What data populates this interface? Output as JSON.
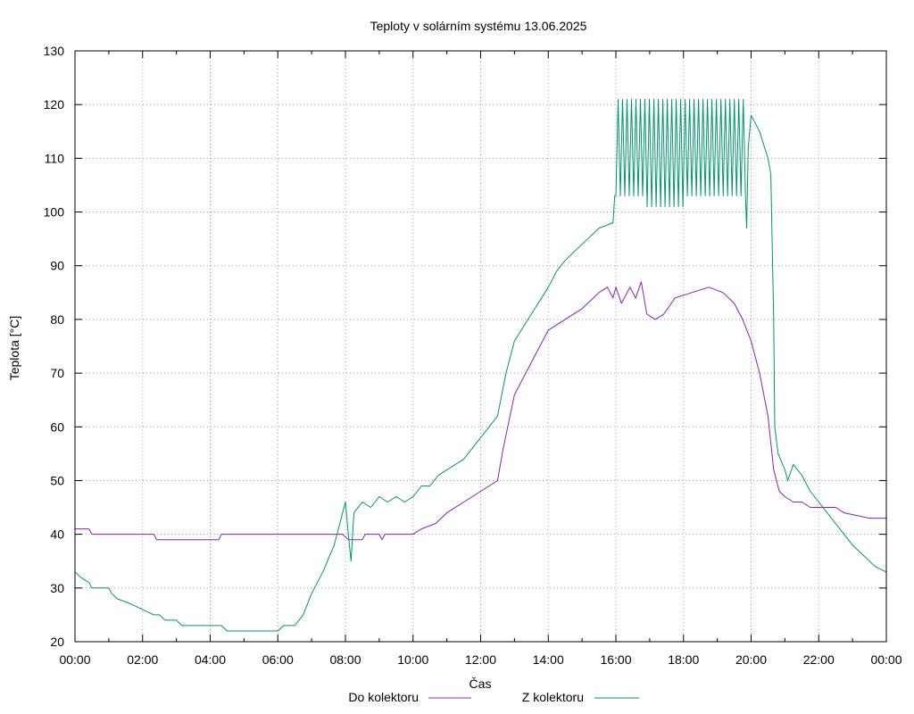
{
  "chart_data": {
    "type": "line",
    "title": "Teploty v solárním systému 13.06.2025",
    "xlabel": "Čas",
    "ylabel": "Teplota [°C]",
    "xlim_hours": [
      0,
      24
    ],
    "ylim": [
      20,
      130
    ],
    "x_ticks": [
      "00:00",
      "02:00",
      "04:00",
      "06:00",
      "08:00",
      "10:00",
      "12:00",
      "14:00",
      "16:00",
      "18:00",
      "20:00",
      "22:00",
      "00:00"
    ],
    "y_ticks": [
      20,
      30,
      40,
      50,
      60,
      70,
      80,
      90,
      100,
      110,
      120,
      130
    ],
    "grid": true,
    "legend_position": "bottom-center",
    "series": [
      {
        "name": "Do kolektoru",
        "color": "#8b1fb4",
        "points": [
          [
            "00:00",
            41
          ],
          [
            "00:25",
            41
          ],
          [
            "00:30",
            40
          ],
          [
            "02:20",
            40
          ],
          [
            "02:25",
            39
          ],
          [
            "04:15",
            39
          ],
          [
            "04:20",
            40
          ],
          [
            "07:40",
            40
          ],
          [
            "07:55",
            40
          ],
          [
            "08:05",
            39
          ],
          [
            "08:30",
            39
          ],
          [
            "08:35",
            40
          ],
          [
            "09:00",
            40
          ],
          [
            "09:05",
            39
          ],
          [
            "09:10",
            40
          ],
          [
            "10:00",
            40
          ],
          [
            "10:15",
            41
          ],
          [
            "10:40",
            42
          ],
          [
            "11:00",
            44
          ],
          [
            "11:30",
            46
          ],
          [
            "12:00",
            48
          ],
          [
            "12:30",
            50
          ],
          [
            "12:40",
            56
          ],
          [
            "13:00",
            66
          ],
          [
            "13:30",
            72
          ],
          [
            "14:00",
            78
          ],
          [
            "14:30",
            80
          ],
          [
            "15:00",
            82
          ],
          [
            "15:30",
            85
          ],
          [
            "15:45",
            86
          ],
          [
            "15:55",
            84
          ],
          [
            "16:00",
            86
          ],
          [
            "16:10",
            83
          ],
          [
            "16:25",
            86
          ],
          [
            "16:35",
            84
          ],
          [
            "16:45",
            87
          ],
          [
            "16:55",
            81
          ],
          [
            "17:10",
            80
          ],
          [
            "17:25",
            81
          ],
          [
            "17:45",
            84
          ],
          [
            "18:15",
            85
          ],
          [
            "18:45",
            86
          ],
          [
            "19:10",
            85
          ],
          [
            "19:30",
            83
          ],
          [
            "19:45",
            80
          ],
          [
            "20:00",
            76
          ],
          [
            "20:15",
            70
          ],
          [
            "20:30",
            62
          ],
          [
            "20:40",
            52
          ],
          [
            "20:50",
            48
          ],
          [
            "21:00",
            47
          ],
          [
            "21:15",
            46
          ],
          [
            "21:30",
            46
          ],
          [
            "21:45",
            45
          ],
          [
            "22:30",
            45
          ],
          [
            "22:45",
            44
          ],
          [
            "23:30",
            43
          ],
          [
            "24:00",
            43
          ]
        ]
      },
      {
        "name": "Z kolektoru",
        "color": "#00956b",
        "points": [
          [
            "00:00",
            33
          ],
          [
            "00:10",
            32
          ],
          [
            "00:25",
            31
          ],
          [
            "00:30",
            30
          ],
          [
            "01:00",
            30
          ],
          [
            "01:05",
            29
          ],
          [
            "01:15",
            28
          ],
          [
            "01:40",
            27
          ],
          [
            "02:00",
            26
          ],
          [
            "02:20",
            25
          ],
          [
            "02:30",
            25
          ],
          [
            "02:40",
            24
          ],
          [
            "03:00",
            24
          ],
          [
            "03:10",
            23
          ],
          [
            "04:00",
            23
          ],
          [
            "04:20",
            23
          ],
          [
            "04:30",
            22
          ],
          [
            "05:00",
            22
          ],
          [
            "06:00",
            22
          ],
          [
            "06:10",
            23
          ],
          [
            "06:30",
            23
          ],
          [
            "06:45",
            25
          ],
          [
            "07:00",
            29
          ],
          [
            "07:20",
            33
          ],
          [
            "07:40",
            38
          ],
          [
            "07:50",
            42
          ],
          [
            "08:00",
            46
          ],
          [
            "08:05",
            40
          ],
          [
            "08:10",
            35
          ],
          [
            "08:15",
            44
          ],
          [
            "08:30",
            46
          ],
          [
            "08:45",
            45
          ],
          [
            "09:00",
            47
          ],
          [
            "09:15",
            46
          ],
          [
            "09:30",
            47
          ],
          [
            "09:45",
            46
          ],
          [
            "10:00",
            47
          ],
          [
            "10:15",
            49
          ],
          [
            "10:30",
            49
          ],
          [
            "10:45",
            51
          ],
          [
            "11:00",
            52
          ],
          [
            "11:15",
            53
          ],
          [
            "11:30",
            54
          ],
          [
            "11:45",
            56
          ],
          [
            "12:00",
            58
          ],
          [
            "12:15",
            60
          ],
          [
            "12:30",
            62
          ],
          [
            "12:45",
            70
          ],
          [
            "13:00",
            76
          ],
          [
            "13:30",
            81
          ],
          [
            "14:00",
            86
          ],
          [
            "14:15",
            89
          ],
          [
            "14:30",
            91
          ],
          [
            "15:00",
            94
          ],
          [
            "15:30",
            97
          ],
          [
            "15:55",
            98
          ],
          [
            "15:58",
            103
          ],
          [
            "16:00",
            103
          ],
          [
            "19:50",
            103
          ],
          [
            "19:52",
            97
          ],
          [
            "19:55",
            112
          ],
          [
            "20:00",
            118
          ],
          [
            "20:15",
            115
          ],
          [
            "20:30",
            110
          ],
          [
            "20:35",
            107
          ],
          [
            "20:40",
            80
          ],
          [
            "20:42",
            60
          ],
          [
            "20:48",
            55
          ],
          [
            "21:00",
            52
          ],
          [
            "21:05",
            50
          ],
          [
            "21:15",
            53
          ],
          [
            "21:30",
            51
          ],
          [
            "21:45",
            48
          ],
          [
            "22:00",
            46
          ],
          [
            "22:15",
            44
          ],
          [
            "22:30",
            42
          ],
          [
            "22:45",
            40
          ],
          [
            "23:00",
            38
          ],
          [
            "23:20",
            36
          ],
          [
            "23:40",
            34
          ],
          [
            "24:00",
            33
          ]
        ],
        "oscillation": {
          "from": "16:00",
          "to": "19:50",
          "low": 103,
          "high": 121
        }
      }
    ]
  }
}
